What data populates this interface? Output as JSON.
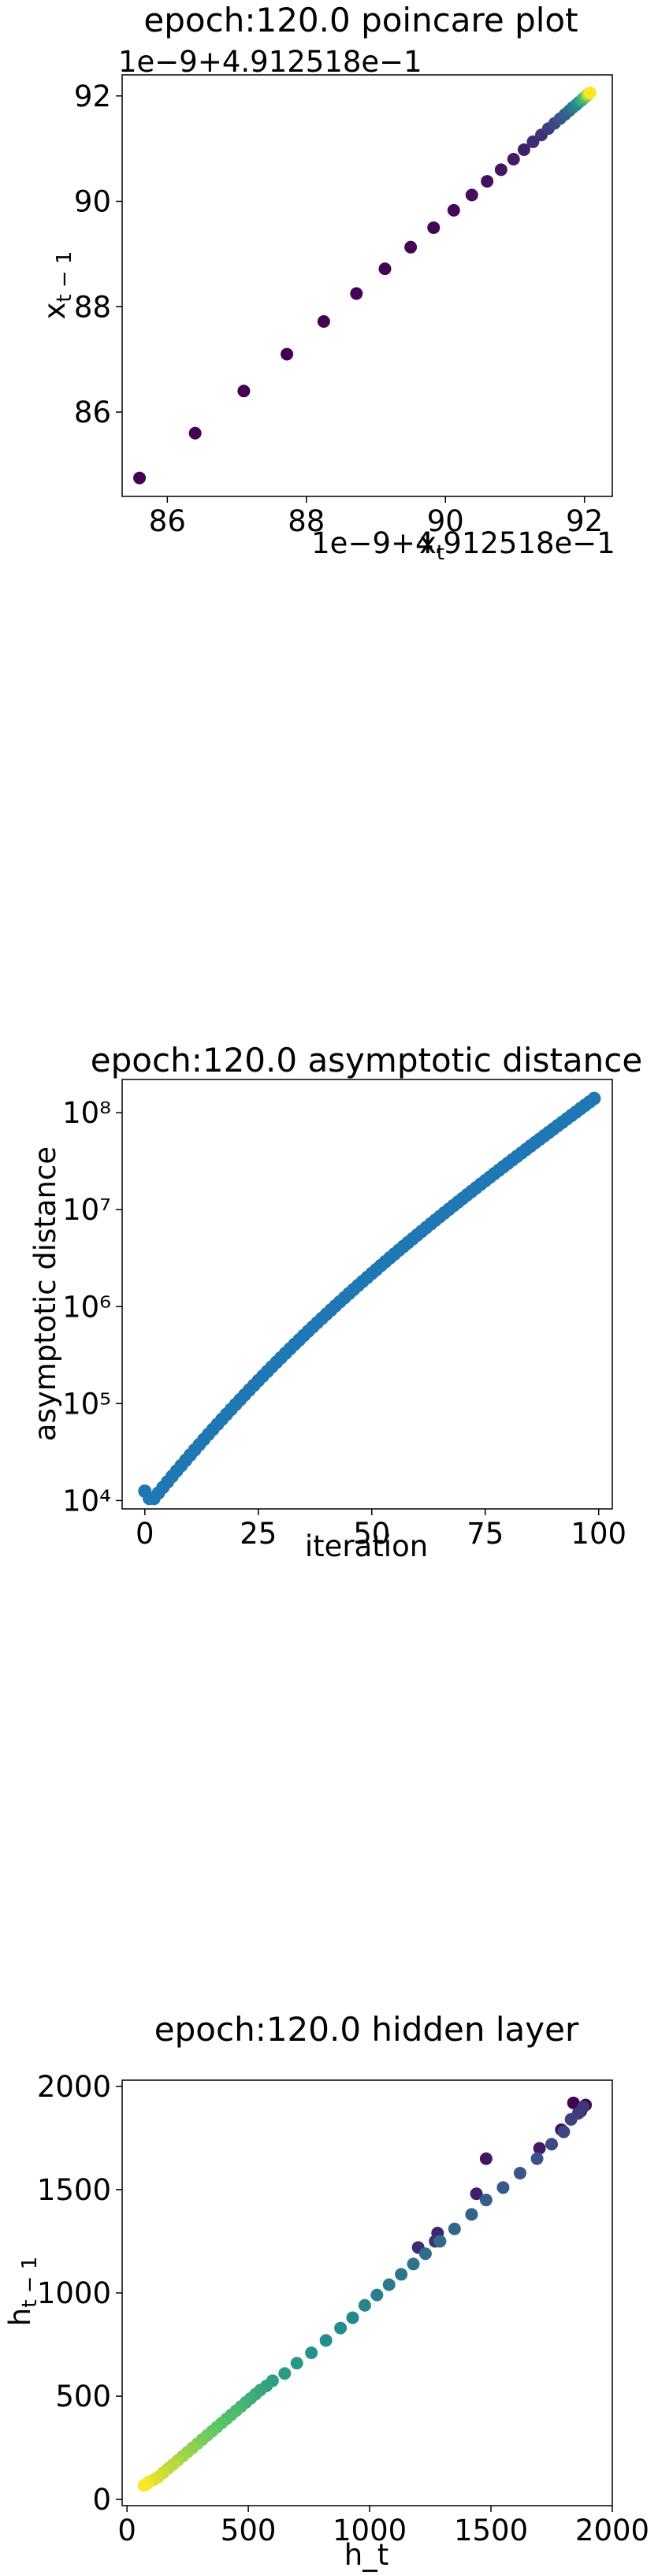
{
  "chart_data": [
    {
      "type": "scatter",
      "title": "epoch:120.0 poincare plot",
      "xlabel": "x_t",
      "ylabel": "x_{t-1}",
      "x_offset_text": "1e−9+4.912518e−1",
      "y_offset_text": "1e−9+4.912518e−1",
      "xlim": [
        85.35,
        92.4
      ],
      "ylim": [
        84.4,
        92.4
      ],
      "xticks": [
        86,
        88,
        90,
        92
      ],
      "yticks": [
        86,
        88,
        90,
        92
      ],
      "colormap": "viridis",
      "x": [
        85.6,
        86.4,
        87.1,
        87.72,
        88.25,
        88.72,
        89.13,
        89.5,
        89.83,
        90.12,
        90.38,
        90.6,
        90.8,
        90.98,
        91.13,
        91.26,
        91.38,
        91.48,
        91.57,
        91.65,
        91.72,
        91.78,
        91.83,
        91.88,
        91.92,
        91.96,
        91.99,
        92.02,
        92.04,
        92.06,
        92.08
      ],
      "y": [
        84.75,
        85.6,
        86.4,
        87.1,
        87.72,
        88.25,
        88.72,
        89.13,
        89.5,
        89.83,
        90.12,
        90.38,
        90.6,
        90.8,
        90.98,
        91.13,
        91.26,
        91.38,
        91.48,
        91.57,
        91.65,
        91.72,
        91.78,
        91.83,
        91.88,
        91.92,
        91.96,
        91.99,
        92.02,
        92.04,
        92.06
      ]
    },
    {
      "type": "scatter",
      "title": "epoch:120.0 asymptotic distance",
      "xlabel": "iteration",
      "ylabel": "asymptotic distance",
      "yscale": "log",
      "xlim": [
        -5,
        103
      ],
      "ylim": [
        8200,
        220000000
      ],
      "xticks": [
        0,
        25,
        50,
        75,
        100
      ],
      "ytick_values": [
        10000,
        100000,
        1000000,
        10000000,
        100000000
      ],
      "ytick_labels": [
        "10⁴",
        "10⁵",
        "10⁶",
        "10⁷",
        "10⁸"
      ],
      "marker_color": "#1f77b4",
      "iterations": 100,
      "start_value": 12500,
      "min_value": 10500,
      "end_value": 140000000
    },
    {
      "type": "scatter",
      "title": "epoch:120.0 hidden layer",
      "xlabel": "h_t",
      "ylabel": "h_{t-1}",
      "xlim": [
        -20,
        2000
      ],
      "ylim": [
        -30,
        2030
      ],
      "xticks": [
        0,
        500,
        1000,
        1500,
        2000
      ],
      "yticks": [
        0,
        500,
        1000,
        1500,
        2000
      ],
      "colormap": "viridis",
      "x": [
        1840,
        1890,
        1870,
        1790,
        1480,
        1700,
        1440,
        1280,
        1200,
        1270,
        1880,
        1860,
        1830,
        1800,
        1750,
        1690,
        1620,
        1550,
        1480,
        1420,
        1350,
        1290,
        1230,
        1180,
        1130,
        1080,
        1030,
        980,
        930,
        880,
        820,
        760,
        700,
        650,
        600,
        575,
        550,
        530,
        510,
        490,
        470,
        450,
        430,
        410,
        390,
        370,
        350,
        330,
        310,
        290,
        270,
        250,
        230,
        210,
        190,
        170,
        150,
        130,
        110,
        90,
        80,
        70
      ],
      "y": [
        1920,
        1910,
        1880,
        1790,
        1650,
        1700,
        1480,
        1290,
        1220,
        1250,
        1900,
        1870,
        1840,
        1780,
        1720,
        1650,
        1580,
        1510,
        1450,
        1380,
        1310,
        1250,
        1190,
        1140,
        1090,
        1040,
        990,
        940,
        880,
        830,
        770,
        710,
        660,
        610,
        575,
        550,
        530,
        510,
        490,
        470,
        450,
        430,
        410,
        390,
        370,
        350,
        330,
        310,
        290,
        270,
        250,
        230,
        210,
        190,
        170,
        150,
        130,
        110,
        95,
        85,
        75,
        68
      ]
    }
  ]
}
